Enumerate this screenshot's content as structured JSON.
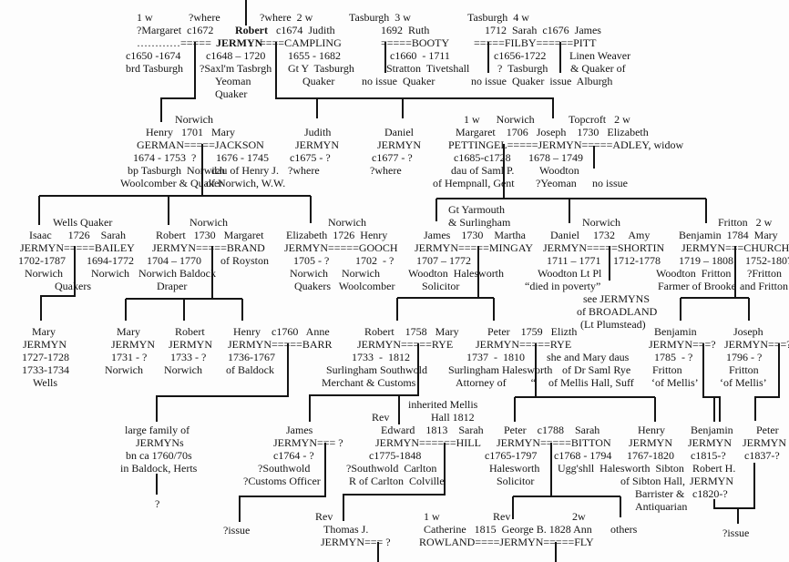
{
  "colors": {
    "ink": "#141414",
    "background": "#fdfdfd"
  },
  "labels": [
    "1 w",
    "?where",
    "?where  2 w",
    "Tasburgh  3 w",
    "Tasburgh  4 w",
    "?Margaret  c1672",
    "Robert",
    "c1674  Judith",
    "1692  Ruth",
    "1712  Sarah  c1676  James",
    "…………=====",
    "JERMYN",
    "====CAMPLING",
    "=====BOOTY",
    "=====FILBY======PITT",
    "c1650 -1674",
    "c1648 – 1720",
    "1655 - 1682",
    "c1660  - 1711",
    "c1656-1722",
    "Linen Weaver",
    "brd Tasburgh",
    "?Saxl'm Tasbrgh",
    "Gt Y  Tasburgh",
    "Stratton  Tivetshall",
    "?  Tasburgh",
    "& Quaker of",
    "Yeoman",
    "Quaker",
    "no issue  Quaker",
    "no issue  Quaker  issue  Alburgh",
    "Quaker",
    "Norwich",
    "Henry   1701   Mary",
    "GERMAN=====JACKSON",
    "1674 - 1753  ?",
    "1676 - 1745",
    "bp Tasburgh  Norwich",
    "dau of Henry J.",
    "Woolcomber & Quaker",
    "of Norwich, W.W.",
    "Judith",
    "JERMYN",
    "c1675 - ?",
    "?where",
    "Daniel",
    "JERMYN",
    "c1677 - ?",
    "?where",
    "1 w      Norwich",
    "Topcroft   2 w",
    "Margaret    1706   Joseph    1730   Elizabeth",
    "PETTINGEL=====JERMYN=====ADLEY, widow",
    "c1685-c1728",
    "1678 – 1749",
    "dau of Saml P.",
    "Woodton",
    "of Hempnall, Gent",
    "?Yeoman",
    "no issue",
    "Wells Quaker",
    "Isaac      1726    Sarah",
    "JERMYN=====BAILEY",
    "1702-1787",
    "1694-1772",
    "Norwich",
    "Norwich",
    "Quakers",
    "Norwich",
    "Robert   1730   Margaret",
    "JERMYN=====BRAND",
    "1704 – 1770",
    "of Royston",
    "Norwich Baldock",
    "Draper",
    "Norwich",
    "Elizabeth  1726  Henry",
    "JERMYN=====GOOCH",
    "1705 - ?",
    "1702  - ?",
    "Norwich     Norwich",
    "Quakers   Woolcomber",
    "Gt Yarmouth",
    "& Surlingham",
    "James    1730    Martha",
    "JERMYN=====MINGAY",
    "1707 – 1772",
    "Woodton  Halesworth",
    "Solicitor",
    "Norwich",
    "Daniel     1732     Amy",
    "JERMYN=====SHORTIN",
    "1711 – 1771",
    "1712-1778",
    "Woodton Lt Pl",
    "“died in poverty”",
    "see JERMYNS",
    "of BROADLAND",
    "(Lt Plumstead)",
    "Fritton   2 w",
    "Benjamin  1784  Mary",
    "JERMYN===CHURCH",
    "1719 – 1808",
    "1752-1807",
    "Woodton  Fritton",
    "?Fritton",
    "Farmer of Brooke",
    "and Fritton",
    "Mary",
    "JERMYN",
    "1727-1728",
    "1733-1734",
    "Wells",
    "Mary",
    "JERMYN",
    "1731 - ?",
    "Norwich",
    "Robert",
    "JERMYN",
    "1733 - ?",
    "Norwich",
    "Henry    c1760   Anne",
    "JERMYN=====BARR",
    "1736-1767",
    "of Baldock",
    "Robert    1758   Mary",
    "JERMYN=====RYE",
    "1733  -  1812",
    "Surlingham Southwold",
    "Merchant & Customs",
    "Peter    1759   Elizth",
    "JERMYN=====RYE",
    "1737  -  1810",
    "she and Mary daus",
    "Surlingham Halesworth",
    "of Dr Saml Rye",
    "Attorney of         “",
    "of Mellis Hall, Suff",
    "Benjamin",
    "JERMYN===?",
    "1785  - ?",
    "Fritton",
    "‘of Mellis’",
    "Joseph",
    "JERMYN===?",
    "1796 - ?",
    "Fritton",
    "‘of Mellis’",
    "large family of",
    "JERMYNs",
    "bn ca 1760/70s",
    "in Baldock, Herts",
    "?",
    "James",
    "JERMYN=== ?",
    "c1764 - ?",
    "?Southwold",
    "?Customs Officer",
    "?issue",
    "inherited Mellis",
    "Rev",
    "Hall 1812",
    "Edward    1813    Sarah",
    "JERMYN======HILL",
    "c1775-1848",
    "?Southwold  Carlton",
    "R of Carlton  Colville",
    "Peter    c1788    Sarah",
    "JERMYN=====BITTON",
    "c1765-1797",
    "c1768 - 1794",
    "Halesworth",
    "Ugg'shll  Halesworth  Sibton",
    "Solicitor",
    "Henry",
    "JERMYN",
    "1767-1820",
    "of Sibton Hall,",
    "Barrister &",
    "Antiquarian",
    "Benjamin",
    "JERMYN",
    "c1815-?",
    "Robert H.",
    "JERMYN",
    "c1820-?",
    "Peter",
    "JERMYN",
    "c1837-?",
    "?issue",
    "Rev",
    "Thomas J.",
    "JERMYN=== ?",
    "1 w",
    "Rev",
    "2w",
    "Catherine   1815  George B. 1828 Ann",
    "others",
    "ROWLAND====JERMYN=====FLY"
  ]
}
